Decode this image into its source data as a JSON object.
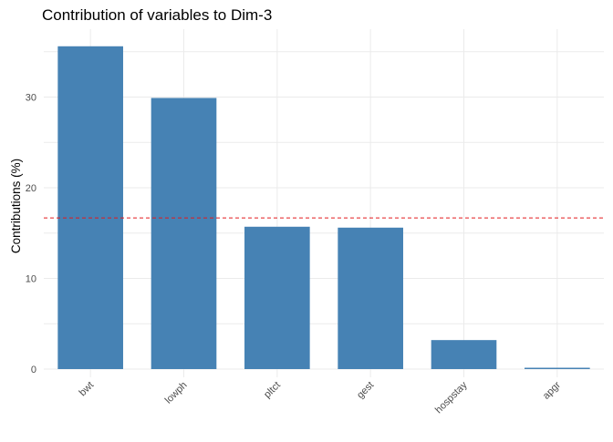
{
  "chart_data": {
    "type": "bar",
    "title": "Contribution of variables to Dim-3",
    "xlabel": "",
    "ylabel": "Contributions (%)",
    "categories": [
      "bwt",
      "lowph",
      "pltct",
      "gest",
      "hospstay",
      "apgr"
    ],
    "values": [
      35.6,
      29.9,
      15.7,
      15.6,
      3.2,
      0.15
    ],
    "ylim": [
      0,
      37.5
    ],
    "yticks": [
      0,
      10,
      20,
      30
    ],
    "ytick_labels": [
      "0",
      "10",
      "20",
      "30"
    ],
    "reference_line": {
      "value": 16.67,
      "style": "dashed"
    },
    "grid": true,
    "bar_color": "#4682B4",
    "reference_color": "#E41A1C",
    "grid_color": "#EBEBEB",
    "text_color": "#4D4D4D"
  }
}
